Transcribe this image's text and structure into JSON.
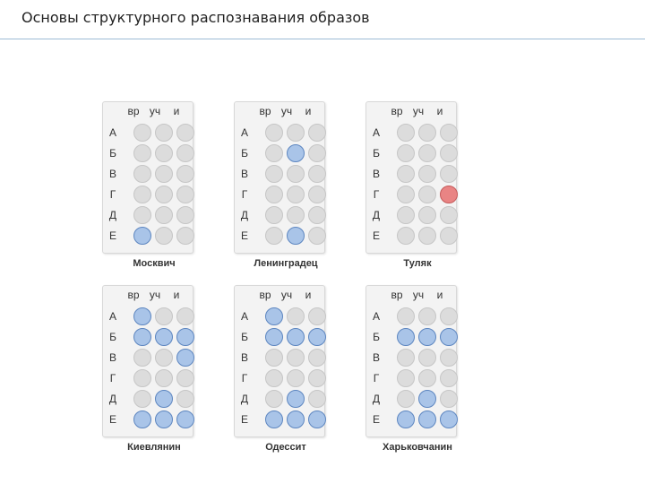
{
  "header": {
    "title": "Основы структурного распознавания образов"
  },
  "grid": {
    "columns": [
      "вр",
      "уч",
      "и"
    ],
    "rows": [
      "А",
      "Б",
      "В",
      "Г",
      "Д",
      "Е"
    ]
  },
  "colors": {
    "off": "#dcdcdc",
    "blue": "#a9c4e8",
    "red": "#e98484"
  },
  "panels": [
    {
      "name": "Москвич",
      "cells": [
        [
          0,
          0,
          0
        ],
        [
          0,
          0,
          0
        ],
        [
          0,
          0,
          0
        ],
        [
          0,
          0,
          0
        ],
        [
          0,
          0,
          0
        ],
        [
          1,
          0,
          0
        ]
      ]
    },
    {
      "name": "Ленинградец",
      "cells": [
        [
          0,
          0,
          0
        ],
        [
          0,
          1,
          0
        ],
        [
          0,
          0,
          0
        ],
        [
          0,
          0,
          0
        ],
        [
          0,
          0,
          0
        ],
        [
          0,
          1,
          0
        ]
      ]
    },
    {
      "name": "Туляк",
      "cells": [
        [
          0,
          0,
          0
        ],
        [
          0,
          0,
          0
        ],
        [
          0,
          0,
          0
        ],
        [
          0,
          0,
          2
        ],
        [
          0,
          0,
          0
        ],
        [
          0,
          0,
          0
        ]
      ]
    },
    {
      "name": "Киевлянин",
      "cells": [
        [
          1,
          0,
          0
        ],
        [
          1,
          1,
          1
        ],
        [
          0,
          0,
          1
        ],
        [
          0,
          0,
          0
        ],
        [
          0,
          1,
          0
        ],
        [
          1,
          1,
          1
        ]
      ]
    },
    {
      "name": "Одессит",
      "cells": [
        [
          1,
          0,
          0
        ],
        [
          1,
          1,
          1
        ],
        [
          0,
          0,
          0
        ],
        [
          0,
          0,
          0
        ],
        [
          0,
          1,
          0
        ],
        [
          1,
          1,
          1
        ]
      ]
    },
    {
      "name": "Харьковчанин",
      "cells": [
        [
          0,
          0,
          0
        ],
        [
          1,
          1,
          1
        ],
        [
          0,
          0,
          0
        ],
        [
          0,
          0,
          0
        ],
        [
          0,
          1,
          0
        ],
        [
          1,
          1,
          1
        ]
      ]
    }
  ]
}
